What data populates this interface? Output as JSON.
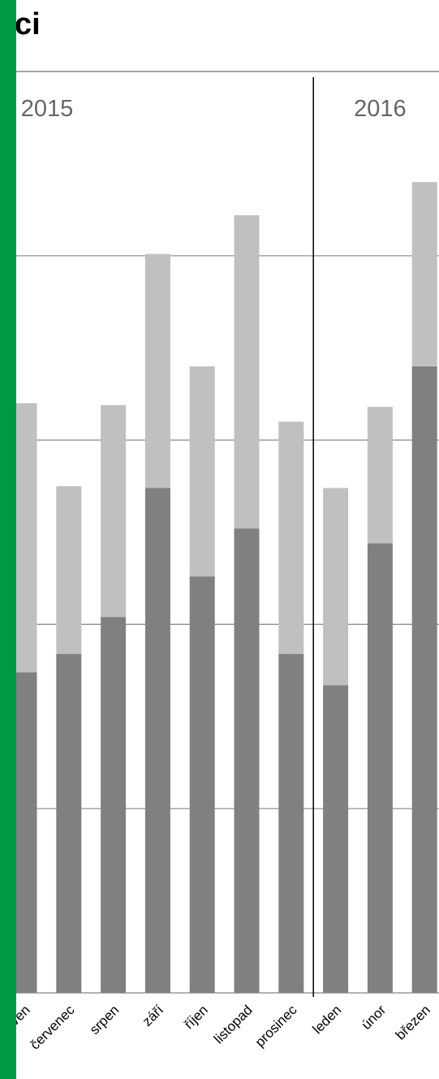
{
  "chart_data": {
    "type": "stacked-bar",
    "title": "ci",
    "groups": [
      {
        "label": "2015",
        "from": 0,
        "to": 6
      },
      {
        "label": "2016",
        "from": 7,
        "to": 9
      }
    ],
    "categories": [
      "červen",
      "červenec",
      "srpen",
      "září",
      "říjen",
      "listopad",
      "prosinec",
      "leden",
      "únor",
      "březen"
    ],
    "series": [
      {
        "color": "#808080",
        "values": [
          1.74,
          1.84,
          2.04,
          2.74,
          2.26,
          2.52,
          1.84,
          1.67,
          2.44,
          3.4
        ]
      },
      {
        "color": "#c0c0c0",
        "values": [
          1.46,
          0.91,
          1.15,
          1.27,
          1.14,
          1.7,
          1.26,
          1.07,
          0.74,
          1.0
        ]
      }
    ],
    "ylim": [
      0,
      5
    ],
    "gridlines": [
      1,
      2,
      3,
      4
    ]
  }
}
